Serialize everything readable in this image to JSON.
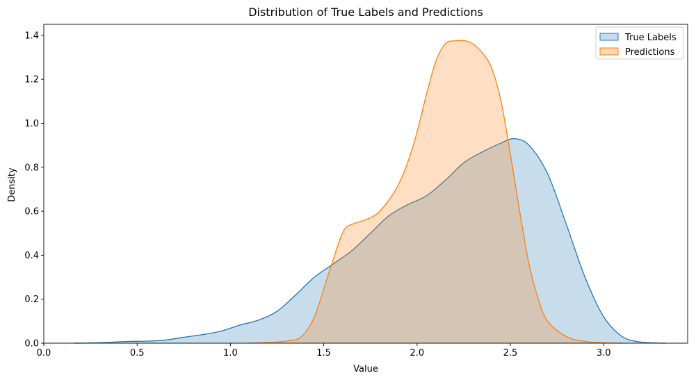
{
  "chart_data": {
    "type": "area",
    "title": "Distribution of True Labels and Predictions",
    "xlabel": "Value",
    "ylabel": "Density",
    "xlim": [
      0.0,
      3.45
    ],
    "ylim": [
      0.0,
      1.45
    ],
    "xticks": [
      0.0,
      0.5,
      1.0,
      1.5,
      2.0,
      2.5,
      3.0
    ],
    "xtick_labels": [
      "0.0",
      "0.5",
      "1.0",
      "1.5",
      "2.0",
      "2.5",
      "3.0"
    ],
    "yticks": [
      0.0,
      0.2,
      0.4,
      0.6,
      0.8,
      1.0,
      1.2,
      1.4
    ],
    "ytick_labels": [
      "0.0",
      "0.2",
      "0.4",
      "0.6",
      "0.8",
      "1.0",
      "1.2",
      "1.4"
    ],
    "grid": false,
    "legend_position": "top-right",
    "series": [
      {
        "name": "True Labels",
        "color": "#1f77b4",
        "fill": "#c6dcee",
        "x": [
          0.16,
          0.25,
          0.35,
          0.45,
          0.55,
          0.65,
          0.75,
          0.85,
          0.95,
          1.05,
          1.15,
          1.25,
          1.35,
          1.45,
          1.55,
          1.65,
          1.75,
          1.85,
          1.95,
          2.05,
          2.15,
          2.25,
          2.35,
          2.45,
          2.52,
          2.6,
          2.7,
          2.8,
          2.9,
          3.0,
          3.1,
          3.2,
          3.33
        ],
        "values": [
          0.0,
          0.001,
          0.004,
          0.008,
          0.009,
          0.014,
          0.027,
          0.039,
          0.055,
          0.082,
          0.105,
          0.145,
          0.22,
          0.3,
          0.36,
          0.42,
          0.5,
          0.58,
          0.63,
          0.67,
          0.74,
          0.82,
          0.87,
          0.91,
          0.93,
          0.9,
          0.77,
          0.54,
          0.3,
          0.12,
          0.03,
          0.005,
          0.0
        ]
      },
      {
        "name": "Predictions",
        "color": "#ff7f0e",
        "fill": "#fdd9b5",
        "x": [
          1.1,
          1.2,
          1.3,
          1.38,
          1.45,
          1.52,
          1.6,
          1.65,
          1.72,
          1.8,
          1.9,
          1.98,
          2.05,
          2.1,
          2.15,
          2.2,
          2.28,
          2.35,
          2.4,
          2.45,
          2.5,
          2.55,
          2.6,
          2.65,
          2.7,
          2.8,
          2.9,
          3.0,
          3.1
        ],
        "values": [
          0.0,
          0.003,
          0.01,
          0.03,
          0.12,
          0.3,
          0.5,
          0.54,
          0.56,
          0.6,
          0.72,
          0.9,
          1.13,
          1.28,
          1.36,
          1.375,
          1.37,
          1.32,
          1.25,
          1.1,
          0.86,
          0.6,
          0.36,
          0.2,
          0.1,
          0.03,
          0.008,
          0.002,
          0.0
        ]
      }
    ]
  }
}
